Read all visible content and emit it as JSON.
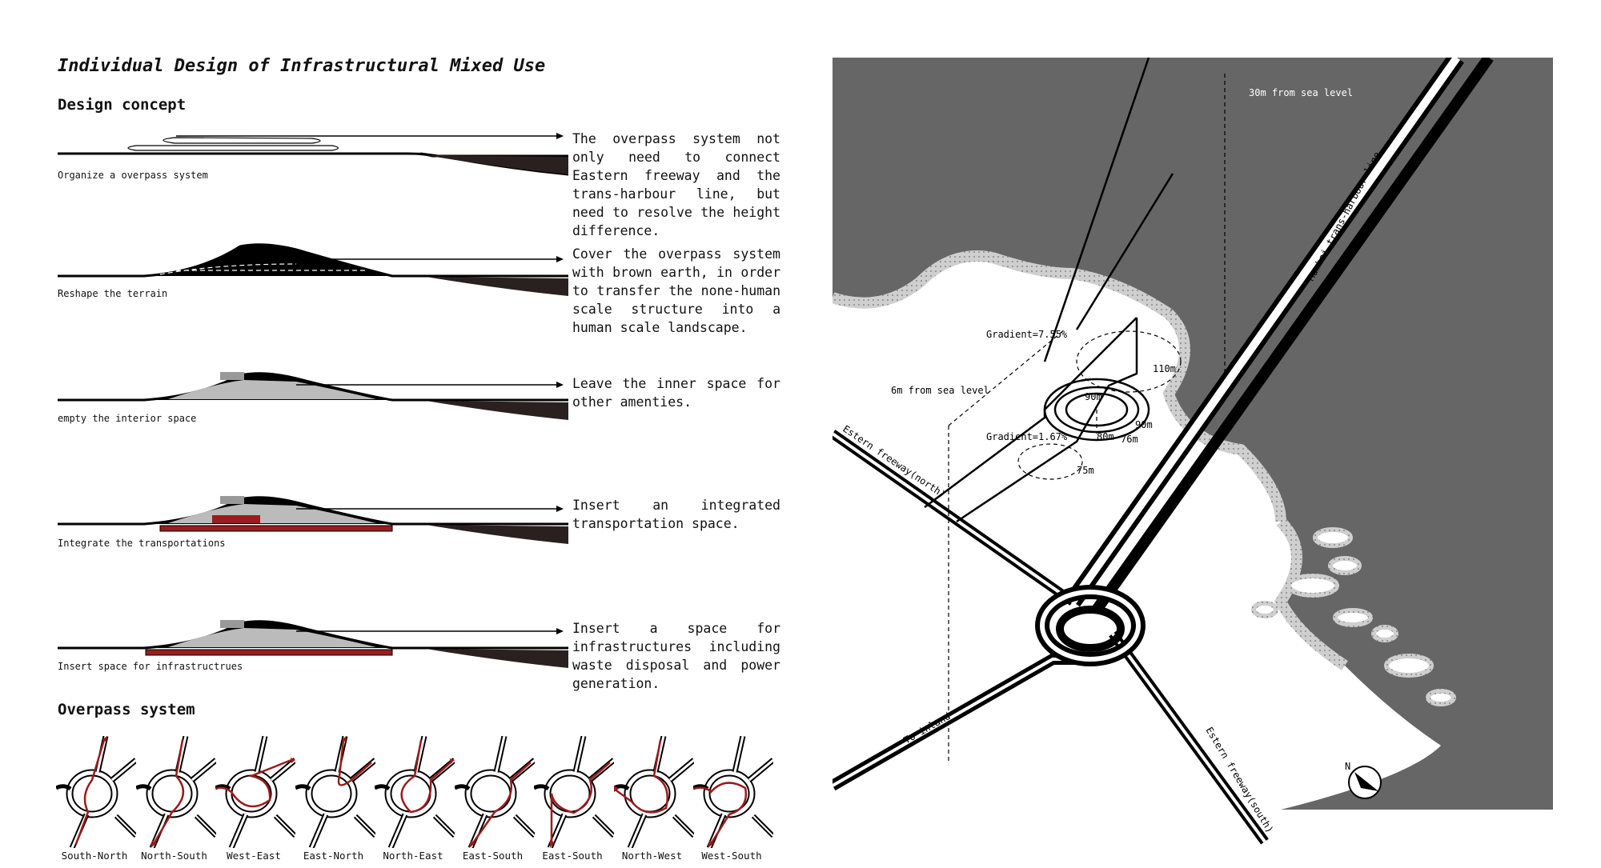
{
  "title": "Individual Design of Infrastructural Mixed Use",
  "design_concept_heading": "Design concept",
  "steps": [
    {
      "label": "Organize a overpass system",
      "text": "The overpass system not only need to connect Eastern freeway and the trans-harbour line, but need to resolve the height difference."
    },
    {
      "label": "Reshape the terrain",
      "text": "Cover the overpass system with brown earth, in order to transfer the none-human scale structure into a human scale landscape."
    },
    {
      "label": "empty the interior space",
      "text": "Leave the inner space for other amenties."
    },
    {
      "label": "Integrate the transportations",
      "text": "Insert an integrated transportation space."
    },
    {
      "label": "Insert space for infrastructrues",
      "text": "Insert a space for infrastructures including waste disposal and power generation."
    }
  ],
  "overpass_heading": "Overpass system",
  "overpass_routes": [
    "South-North",
    "North-South",
    "West-East",
    "East-North",
    "North-East",
    "East-South",
    "East-South",
    "North-West",
    "West-South"
  ],
  "map_labels": {
    "height_30": "30m from sea level",
    "height_6": "6m from sea level",
    "gradient_a": "Gradient=7.55%",
    "gradient_b": "Gradient=1.67%",
    "d110": "110m",
    "d90a": "90m",
    "d90b": "90m",
    "d80": "80m",
    "d76": "76m",
    "d75": "75m",
    "freeway_north": "Estern freeway(north)",
    "freeway_south": "Estern freeway(south)",
    "trans_harbour": "Mumbai trans-harbour line",
    "inland": "To inland",
    "north": "N"
  },
  "colors": {
    "accent_red": "#9b1c1c",
    "sea_gray": "#666666",
    "land": "#ffffff"
  }
}
